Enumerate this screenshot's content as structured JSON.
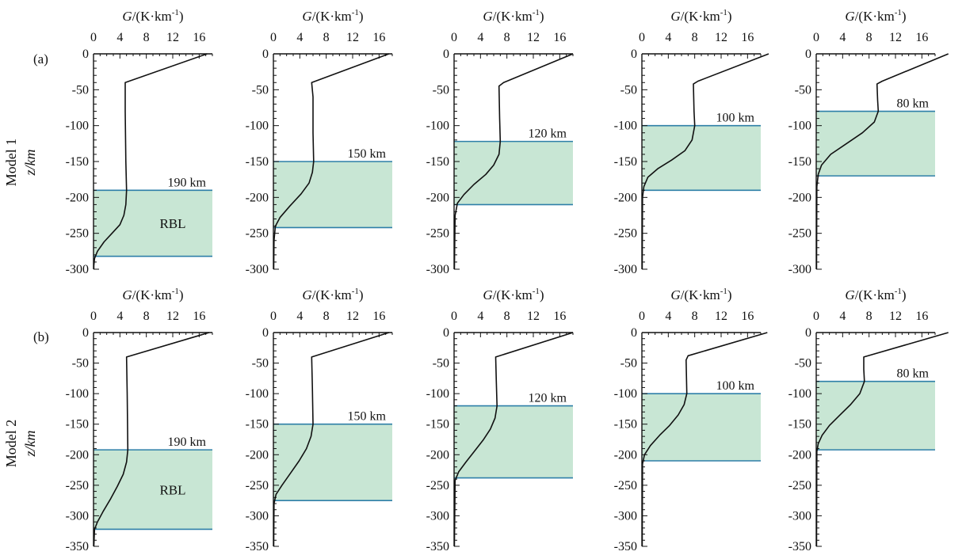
{
  "figure": {
    "row_labels": [
      "(a)",
      "(b)"
    ],
    "side_labels": [
      {
        "model": "Model 1",
        "axis": "z/km"
      },
      {
        "model": "Model 2",
        "axis": "z/km"
      }
    ],
    "xlabel_italic": "G",
    "xlabel_rest": "/(K·km",
    "xlabel_sup": "-1",
    "xlabel_close": ")",
    "rbl_label": "RBL"
  },
  "colors": {
    "curve": "#111111",
    "axis": "#111111",
    "boundary": "#2e7fa8",
    "band": "#c8e6d4"
  },
  "chart_data": [
    {
      "type": "line",
      "row": 0,
      "col": 0,
      "title": "G/(K·km-1)",
      "xlabel": "G/(K·km-1)",
      "ylabel": "z/km",
      "xlim": [
        0,
        18
      ],
      "ylim": [
        -300,
        0
      ],
      "xticks": [
        0,
        4,
        8,
        12,
        16
      ],
      "yticks": [
        0,
        -50,
        -100,
        -150,
        -200,
        -250,
        -300
      ],
      "rbl": {
        "top": -190,
        "bottom": -282,
        "thickness_label": "190 km",
        "show_rbl": true
      },
      "x": [
        17.2,
        4.8,
        4.8,
        4.9,
        5.0,
        4.9,
        4.6,
        4.0,
        2.8,
        1.6,
        0.6,
        0.15,
        0.05,
        0.05
      ],
      "y": [
        0,
        -40,
        -80,
        -150,
        -190,
        -210,
        -225,
        -238,
        -250,
        -262,
        -275,
        -285,
        -295,
        -300
      ]
    },
    {
      "type": "line",
      "row": 0,
      "col": 1,
      "title": "G/(K·km-1)",
      "xlabel": "G/(K·km-1)",
      "ylabel": "z/km",
      "xlim": [
        0,
        18
      ],
      "ylim": [
        -300,
        0
      ],
      "xticks": [
        0,
        4,
        8,
        12,
        16
      ],
      "yticks": [
        0,
        -50,
        -100,
        -150,
        -200,
        -250,
        -300
      ],
      "rbl": {
        "top": -150,
        "bottom": -242,
        "thickness_label": "150 km",
        "show_rbl": false
      },
      "x": [
        17.5,
        5.8,
        6.0,
        6.0,
        6.1,
        5.9,
        5.4,
        4.2,
        2.5,
        1.0,
        0.3,
        0.1,
        0.05
      ],
      "y": [
        0,
        -40,
        -60,
        -110,
        -150,
        -165,
        -180,
        -195,
        -212,
        -228,
        -240,
        -260,
        -300
      ]
    },
    {
      "type": "line",
      "row": 0,
      "col": 2,
      "title": "G/(K·km-1)",
      "xlabel": "G/(K·km-1)",
      "ylabel": "z/km",
      "xlim": [
        0,
        18
      ],
      "ylim": [
        -300,
        0
      ],
      "xticks": [
        0,
        4,
        8,
        12,
        16
      ],
      "yticks": [
        0,
        -50,
        -100,
        -150,
        -200,
        -250,
        -300
      ],
      "rbl": {
        "top": -122,
        "bottom": -210,
        "thickness_label": "120 km",
        "show_rbl": false
      },
      "x": [
        18.0,
        7.5,
        6.8,
        6.9,
        7.0,
        6.8,
        6.0,
        4.8,
        3.0,
        1.5,
        0.5,
        0.15,
        0.05
      ],
      "y": [
        0,
        -40,
        -45,
        -90,
        -122,
        -140,
        -155,
        -168,
        -182,
        -196,
        -208,
        -225,
        -300
      ]
    },
    {
      "type": "line",
      "row": 0,
      "col": 3,
      "title": "G/(K·km-1)",
      "xlabel": "G/(K·km-1)",
      "ylabel": "z/km",
      "xlim": [
        0,
        18
      ],
      "ylim": [
        -300,
        0
      ],
      "xticks": [
        0,
        4,
        8,
        12,
        16
      ],
      "yticks": [
        0,
        -50,
        -100,
        -150,
        -200,
        -250,
        -300
      ],
      "rbl": {
        "top": -100,
        "bottom": -190,
        "thickness_label": "100 km",
        "show_rbl": false
      },
      "x": [
        19.2,
        8.5,
        7.8,
        7.9,
        8.0,
        7.6,
        6.5,
        4.5,
        2.4,
        0.9,
        0.3,
        0.1,
        0.05
      ],
      "y": [
        0,
        -38,
        -42,
        -80,
        -100,
        -120,
        -135,
        -148,
        -160,
        -172,
        -185,
        -200,
        -300
      ]
    },
    {
      "type": "line",
      "row": 0,
      "col": 4,
      "title": "G/(K·km-1)",
      "xlabel": "G/(K·km-1)",
      "ylabel": "z/km",
      "xlim": [
        0,
        18
      ],
      "ylim": [
        -300,
        0
      ],
      "xticks": [
        0,
        4,
        8,
        12,
        16
      ],
      "yticks": [
        0,
        -50,
        -100,
        -150,
        -200,
        -250,
        -300
      ],
      "rbl": {
        "top": -80,
        "bottom": -170,
        "thickness_label": "80 km",
        "show_rbl": false
      },
      "x": [
        20.0,
        10.0,
        9.2,
        9.3,
        9.4,
        8.8,
        7.0,
        4.6,
        2.2,
        0.8,
        0.3,
        0.1,
        0.05
      ],
      "y": [
        0,
        -38,
        -42,
        -65,
        -80,
        -95,
        -110,
        -125,
        -140,
        -155,
        -168,
        -185,
        -300
      ]
    },
    {
      "type": "line",
      "row": 1,
      "col": 0,
      "title": "G/(K·km-1)",
      "xlabel": "G/(K·km-1)",
      "ylabel": "z/km",
      "xlim": [
        0,
        18
      ],
      "ylim": [
        -350,
        0
      ],
      "xticks": [
        0,
        4,
        8,
        12,
        16
      ],
      "yticks": [
        0,
        -50,
        -100,
        -150,
        -200,
        -250,
        -300,
        -350
      ],
      "rbl": {
        "top": -192,
        "bottom": -322,
        "thickness_label": "190 km",
        "show_rbl": true
      },
      "x": [
        17.5,
        5.0,
        5.1,
        5.2,
        5.0,
        4.5,
        3.6,
        2.6,
        1.5,
        0.6,
        0.15,
        0.05
      ],
      "y": [
        0,
        -40,
        -100,
        -192,
        -212,
        -232,
        -252,
        -272,
        -292,
        -310,
        -322,
        -350
      ]
    },
    {
      "type": "line",
      "row": 1,
      "col": 1,
      "title": "G/(K·km-1)",
      "xlabel": "G/(K·km-1)",
      "ylabel": "z/km",
      "xlim": [
        0,
        18
      ],
      "ylim": [
        -350,
        0
      ],
      "xticks": [
        0,
        4,
        8,
        12,
        16
      ],
      "yticks": [
        0,
        -50,
        -100,
        -150,
        -200,
        -250,
        -300,
        -350
      ],
      "rbl": {
        "top": -150,
        "bottom": -275,
        "thickness_label": "150 km",
        "show_rbl": false
      },
      "x": [
        17.5,
        5.8,
        5.9,
        6.0,
        5.7,
        5.0,
        3.9,
        2.6,
        1.3,
        0.4,
        0.1,
        0.05
      ],
      "y": [
        0,
        -40,
        -90,
        -150,
        -170,
        -190,
        -210,
        -230,
        -250,
        -265,
        -280,
        -350
      ]
    },
    {
      "type": "line",
      "row": 1,
      "col": 2,
      "title": "G/(K·km-1)",
      "xlabel": "G/(K·km-1)",
      "ylabel": "z/km",
      "xlim": [
        0,
        18
      ],
      "ylim": [
        -350,
        0
      ],
      "xticks": [
        0,
        4,
        8,
        12,
        16
      ],
      "yticks": [
        0,
        -50,
        -100,
        -150,
        -200,
        -250,
        -300,
        -350
      ],
      "rbl": {
        "top": -120,
        "bottom": -238,
        "thickness_label": "120 km",
        "show_rbl": false
      },
      "x": [
        18.0,
        6.3,
        6.4,
        6.5,
        6.2,
        5.5,
        4.4,
        3.1,
        1.8,
        0.7,
        0.15,
        0.05
      ],
      "y": [
        0,
        -40,
        -80,
        -120,
        -140,
        -158,
        -176,
        -194,
        -212,
        -228,
        -242,
        -350
      ]
    },
    {
      "type": "line",
      "row": 1,
      "col": 3,
      "title": "G/(K·km-1)",
      "xlabel": "G/(K·km-1)",
      "ylabel": "z/km",
      "xlim": [
        0,
        18
      ],
      "ylim": [
        -350,
        0
      ],
      "xticks": [
        0,
        4,
        8,
        12,
        16
      ],
      "yticks": [
        0,
        -50,
        -100,
        -150,
        -200,
        -250,
        -300,
        -350
      ],
      "rbl": {
        "top": -100,
        "bottom": -210,
        "thickness_label": "100 km",
        "show_rbl": false
      },
      "x": [
        19.0,
        7.0,
        6.7,
        6.8,
        6.4,
        5.5,
        4.2,
        2.7,
        1.3,
        0.4,
        0.1,
        0.05
      ],
      "y": [
        0,
        -38,
        -45,
        -100,
        -118,
        -135,
        -152,
        -168,
        -185,
        -200,
        -215,
        -350
      ]
    },
    {
      "type": "line",
      "row": 1,
      "col": 4,
      "title": "G/(K·km-1)",
      "xlabel": "G/(K·km-1)",
      "ylabel": "z/km",
      "xlim": [
        0,
        18
      ],
      "ylim": [
        -350,
        0
      ],
      "xticks": [
        0,
        4,
        8,
        12,
        16
      ],
      "yticks": [
        0,
        -50,
        -100,
        -150,
        -200,
        -250,
        -300,
        -350
      ],
      "rbl": {
        "top": -80,
        "bottom": -192,
        "thickness_label": "80 km",
        "show_rbl": false
      },
      "x": [
        20.0,
        7.2,
        7.2,
        7.3,
        6.6,
        5.2,
        3.6,
        2.0,
        0.9,
        0.3,
        0.1,
        0.05
      ],
      "y": [
        0,
        -40,
        -60,
        -80,
        -100,
        -118,
        -135,
        -152,
        -168,
        -182,
        -195,
        -350
      ]
    }
  ]
}
